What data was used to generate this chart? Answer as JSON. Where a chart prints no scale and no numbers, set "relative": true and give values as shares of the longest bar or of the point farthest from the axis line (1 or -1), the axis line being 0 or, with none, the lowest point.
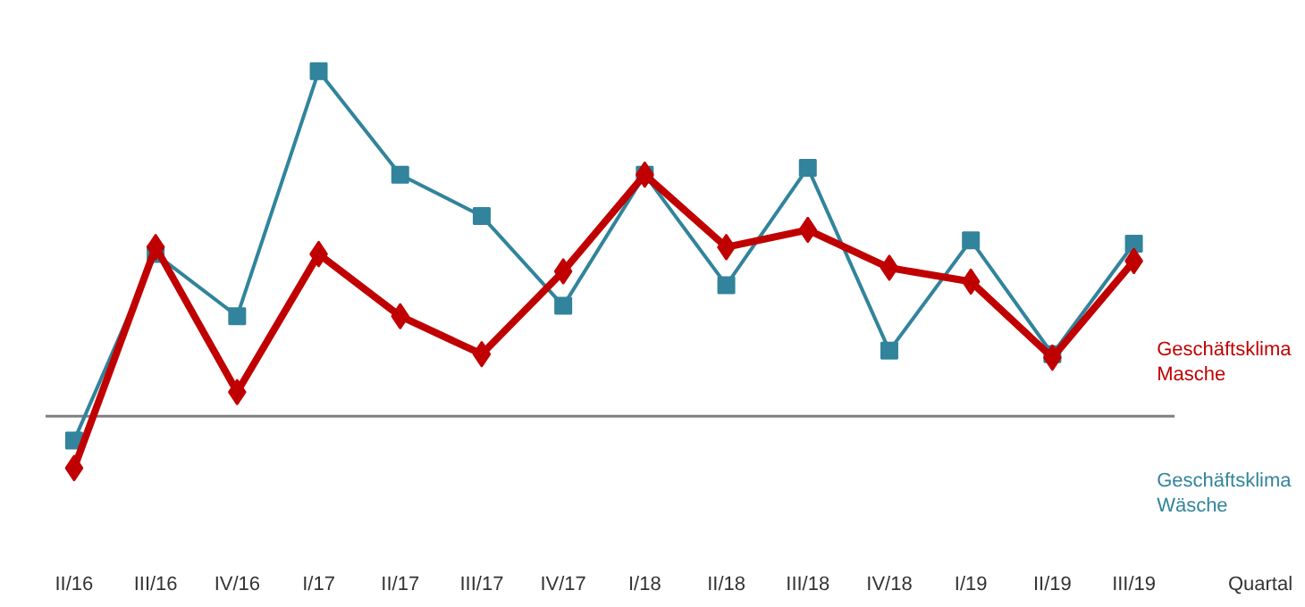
{
  "chart_data": {
    "type": "line",
    "relative": true,
    "xlabel": "Quartal",
    "categories": [
      "II/16",
      "III/16",
      "IV/16",
      "I/17",
      "II/17",
      "III/17",
      "IV/17",
      "I/18",
      "II/18",
      "III/18",
      "IV/18",
      "I/19",
      "II/19",
      "III/19"
    ],
    "series": [
      {
        "name": "Geschäftsklima Wäsche",
        "color": "#31849b",
        "marker": "square",
        "values": [
          -0.07,
          0.47,
          0.29,
          1,
          0.7,
          0.58,
          0.32,
          0.7,
          0.38,
          0.72,
          0.19,
          0.51,
          0.18,
          0.5
        ]
      },
      {
        "name": "Geschäftsklima Masche",
        "color": "#c00000",
        "marker": "diamond",
        "values": [
          -0.15,
          0.49,
          0.07,
          0.47,
          0.29,
          0.18,
          0.42,
          0.7,
          0.49,
          0.54,
          0.43,
          0.39,
          0.17,
          0.45
        ]
      }
    ],
    "grid": false
  }
}
